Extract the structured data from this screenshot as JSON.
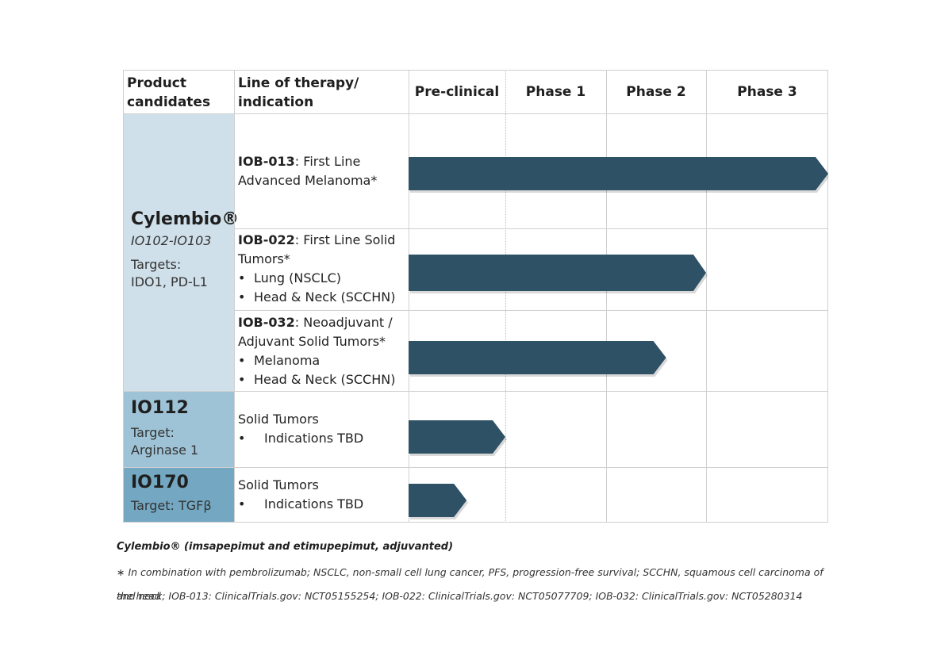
{
  "headers": {
    "product": "Product candidates",
    "line": "Line of therapy/ indication",
    "phases": [
      "Pre-clinical",
      "Phase 1",
      "Phase 2",
      "Phase 3"
    ]
  },
  "products": [
    {
      "name": "Cylembio®",
      "subtitle": "IO102-IO103",
      "target_label": "Targets:",
      "target": "IDO1, PD-L1"
    },
    {
      "name": "IO112",
      "target_label": "Target:",
      "target": "Arginase 1"
    },
    {
      "name": "IO170",
      "target": "Target: TGFβ"
    }
  ],
  "indications": [
    {
      "code": "IOB-013",
      "text": ": First Line Advanced Melanoma*",
      "bullets": [],
      "progress_phase": 4
    },
    {
      "code": "IOB-022",
      "text": ": First Line Solid Tumors*",
      "bullets": [
        "Lung (NSCLC)",
        "Head & Neck (SCCHN)"
      ],
      "progress_phase": 3
    },
    {
      "code": "IOB-032",
      "text": ": Neoadjuvant / Adjuvant Solid Tumors*",
      "bullets": [
        "Melanoma",
        "Head & Neck (SCCHN)"
      ],
      "progress_phase": 2.6
    },
    {
      "code": "",
      "text": "Solid Tumors",
      "bullets": [
        "Indications TBD"
      ],
      "progress_phase": 1
    },
    {
      "code": "",
      "text": "Solid Tumors",
      "bullets": [
        "Indications TBD"
      ],
      "progress_phase": 0.6
    }
  ],
  "footer": {
    "title": "Cylembio® (imsapepimut and etimupepimut, adjuvanted)",
    "note_line1": "∗ In combination with pembrolizumab; NSCLC, non-small cell lung cancer, PFS, progression-free survival; SCCHN, squamous cell carcinoma of the head",
    "note_line2": "and neck; IOB-013: ClinicalTrials.gov: NCT05155254; IOB-022: ClinicalTrials.gov: NCT05077709; IOB-032: ClinicalTrials.gov: NCT05280314"
  },
  "colors": {
    "arrow": "#2e5166",
    "cylembio_bg": "#cfe0ea",
    "io112_bg": "#9ec3d6",
    "io170_bg": "#74a8c2"
  }
}
